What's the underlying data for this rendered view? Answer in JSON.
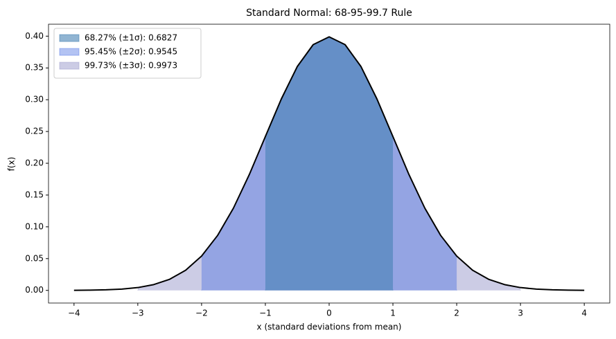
{
  "chart_data": {
    "type": "area",
    "title": "Standard Normal: 68-95-99.7 Rule",
    "x_label": "x (standard deviations from mean)",
    "y_label": "f(x)",
    "x": [
      -4,
      -3.75,
      -3.5,
      -3.25,
      -3,
      -2.75,
      -2.5,
      -2.25,
      -2,
      -1.75,
      -1.5,
      -1.25,
      -1,
      -0.75,
      -0.5,
      -0.25,
      0,
      0.25,
      0.5,
      0.75,
      1,
      1.25,
      1.5,
      1.75,
      2,
      2.25,
      2.5,
      2.75,
      3,
      3.25,
      3.5,
      3.75,
      4
    ],
    "curve": {
      "color": "#000000",
      "values": [
        0.0001,
        0.0004,
        0.0009,
        0.002,
        0.0044,
        0.0091,
        0.0175,
        0.0317,
        0.054,
        0.0863,
        0.1295,
        0.1826,
        0.242,
        0.3011,
        0.3521,
        0.3867,
        0.3989,
        0.3867,
        0.3521,
        0.3011,
        0.242,
        0.1826,
        0.1295,
        0.0863,
        0.054,
        0.0317,
        0.0175,
        0.0091,
        0.0044,
        0.002,
        0.0009,
        0.0004,
        0.0001
      ]
    },
    "series": [
      {
        "name": "68.27%  (±1σ): 0.6827",
        "color": "#4682b4",
        "alpha": 0.6,
        "range": [
          -1,
          1
        ]
      },
      {
        "name": "95.45%  (±2σ): 0.9545",
        "color": "#4169e1",
        "alpha": 0.4,
        "range": [
          -2,
          2
        ]
      },
      {
        "name": "99.73%  (±3σ): 0.9973",
        "color": "#9999cc",
        "alpha": 0.5,
        "range": [
          -3,
          3
        ]
      }
    ],
    "xlim": [
      -4.4,
      4.4
    ],
    "xticks": [
      {
        "value": -4,
        "label": "−4"
      },
      {
        "value": -3,
        "label": "−3"
      },
      {
        "value": -2,
        "label": "−2"
      },
      {
        "value": -1,
        "label": "−1"
      },
      0,
      1,
      2,
      3,
      4
    ],
    "ylim": [
      -0.0199,
      0.4188
    ],
    "yticks": [
      {
        "value": 0,
        "label": "0.00"
      },
      {
        "value": 0.05,
        "label": "0.05"
      },
      {
        "value": 0.1,
        "label": "0.10"
      },
      {
        "value": 0.15,
        "label": "0.15"
      },
      {
        "value": 0.2,
        "label": "0.20"
      },
      {
        "value": 0.25,
        "label": "0.25"
      },
      {
        "value": 0.3,
        "label": "0.30"
      },
      {
        "value": 0.35,
        "label": "0.35"
      },
      {
        "value": 0.4,
        "label": "0.40"
      }
    ],
    "legend": "upper left",
    "grid": false
  }
}
